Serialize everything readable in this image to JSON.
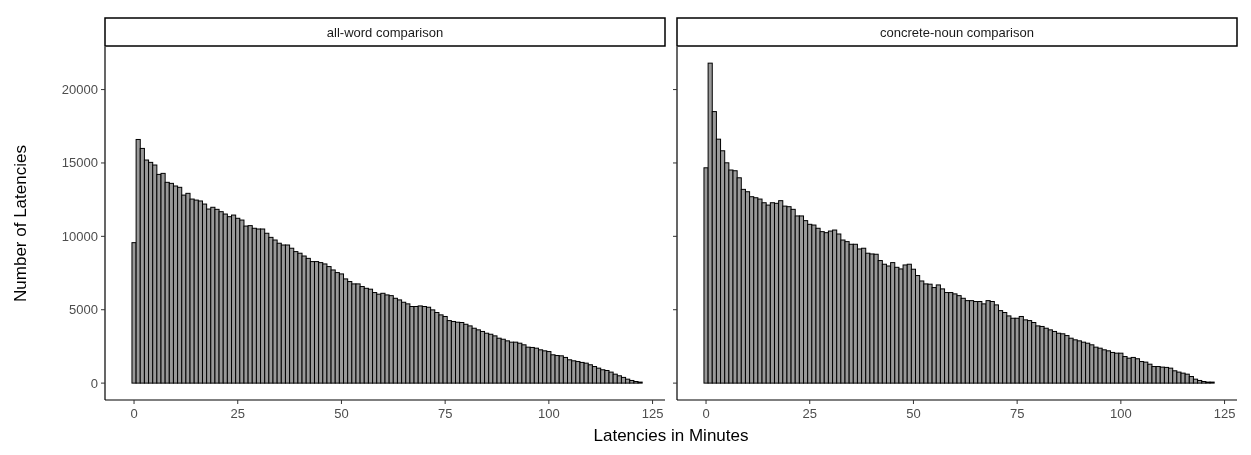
{
  "chart_data": [
    {
      "type": "histogram",
      "title": "all-word comparison",
      "xlabel": "Latencies in Minutes",
      "ylabel": "Number of Latencies",
      "color": "#999999",
      "bins": [
        -0.5,
        0.5,
        1.5,
        2.5,
        3.5,
        4.5,
        5.5,
        6.5,
        7.5,
        8.5,
        9.5,
        10.5,
        11.5,
        12.5,
        13.5,
        14.5,
        15.5,
        16.5,
        17.5,
        18.5,
        19.5,
        20.5,
        21.5,
        22.5,
        23.5,
        24.5,
        25.5,
        26.5,
        27.5,
        28.5,
        29.5,
        30.5,
        31.5,
        32.5,
        33.5,
        34.5,
        35.5,
        36.5,
        37.5,
        38.5,
        39.5,
        40.5,
        41.5,
        42.5,
        43.5,
        44.5,
        45.5,
        46.5,
        47.5,
        48.5,
        49.5,
        50.5,
        51.5,
        52.5,
        53.5,
        54.5,
        55.5,
        56.5,
        57.5,
        58.5,
        59.5,
        60.5,
        61.5,
        62.5,
        63.5,
        64.5,
        65.5,
        66.5,
        67.5,
        68.5,
        69.5,
        70.5,
        71.5,
        72.5,
        73.5,
        74.5,
        75.5,
        76.5,
        77.5,
        78.5,
        79.5,
        80.5,
        81.5,
        82.5,
        83.5,
        84.5,
        85.5,
        86.5,
        87.5,
        88.5,
        89.5,
        90.5,
        91.5,
        92.5,
        93.5,
        94.5,
        95.5,
        96.5,
        97.5,
        98.5,
        99.5,
        100.5,
        101.5,
        102.5,
        103.5,
        104.5,
        105.5,
        106.5,
        107.5,
        108.5,
        109.5,
        110.5,
        111.5,
        112.5,
        113.5,
        114.5,
        115.5,
        116.5,
        117.5,
        118.5,
        119.5,
        120.5,
        121.5,
        122.5
      ],
      "values": [
        9570,
        16600,
        15990,
        15200,
        15040,
        14860,
        14220,
        14290,
        13680,
        13610,
        13430,
        13340,
        12810,
        12930,
        12540,
        12470,
        12410,
        12200,
        11860,
        11980,
        11840,
        11680,
        11520,
        11340,
        11450,
        11230,
        11110,
        10700,
        10730,
        10550,
        10500,
        10500,
        10210,
        9930,
        9750,
        9530,
        9410,
        9410,
        9190,
        8960,
        8850,
        8660,
        8500,
        8280,
        8280,
        8210,
        8120,
        7940,
        7710,
        7530,
        7440,
        7100,
        6920,
        6760,
        6760,
        6580,
        6460,
        6400,
        6170,
        6060,
        6120,
        6010,
        5960,
        5780,
        5670,
        5510,
        5400,
        5220,
        5220,
        5260,
        5220,
        5170,
        4990,
        4810,
        4650,
        4540,
        4260,
        4200,
        4150,
        4130,
        4010,
        3900,
        3740,
        3630,
        3520,
        3400,
        3330,
        3220,
        3060,
        2990,
        2880,
        2790,
        2790,
        2720,
        2610,
        2450,
        2430,
        2380,
        2270,
        2200,
        2150,
        1930,
        1880,
        1860,
        1750,
        1590,
        1520,
        1470,
        1410,
        1360,
        1250,
        1130,
        1020,
        910,
        860,
        750,
        610,
        500,
        390,
        270,
        180,
        110,
        70
      ],
      "xlim": [
        -7,
        128
      ],
      "xticks": [
        0,
        25,
        50,
        75,
        100,
        125
      ],
      "ylim": [
        -1150,
        22900
      ],
      "yticks": [
        0,
        5000,
        10000,
        15000,
        20000
      ]
    },
    {
      "type": "histogram",
      "title": "concrete-noun comparison",
      "color": "#999999",
      "tick_labels": "x",
      "bins": [
        -0.5,
        0.5,
        1.5,
        2.5,
        3.5,
        4.5,
        5.5,
        6.5,
        7.5,
        8.5,
        9.5,
        10.5,
        11.5,
        12.5,
        13.5,
        14.5,
        15.5,
        16.5,
        17.5,
        18.5,
        19.5,
        20.5,
        21.5,
        22.5,
        23.5,
        24.5,
        25.5,
        26.5,
        27.5,
        28.5,
        29.5,
        30.5,
        31.5,
        32.5,
        33.5,
        34.5,
        35.5,
        36.5,
        37.5,
        38.5,
        39.5,
        40.5,
        41.5,
        42.5,
        43.5,
        44.5,
        45.5,
        46.5,
        47.5,
        48.5,
        49.5,
        50.5,
        51.5,
        52.5,
        53.5,
        54.5,
        55.5,
        56.5,
        57.5,
        58.5,
        59.5,
        60.5,
        61.5,
        62.5,
        63.5,
        64.5,
        65.5,
        66.5,
        67.5,
        68.5,
        69.5,
        70.5,
        71.5,
        72.5,
        73.5,
        74.5,
        75.5,
        76.5,
        77.5,
        78.5,
        79.5,
        80.5,
        81.5,
        82.5,
        83.5,
        84.5,
        85.5,
        86.5,
        87.5,
        88.5,
        89.5,
        90.5,
        91.5,
        92.5,
        93.5,
        94.5,
        95.5,
        96.5,
        97.5,
        98.5,
        99.5,
        100.5,
        101.5,
        102.5,
        103.5,
        104.5,
        105.5,
        106.5,
        107.5,
        108.5,
        109.5,
        110.5,
        111.5,
        112.5,
        113.5,
        114.5,
        115.5,
        116.5,
        117.5,
        118.5,
        119.5,
        120.5,
        121.5,
        122.5
      ],
      "values": [
        14670,
        21800,
        18500,
        16620,
        15830,
        15010,
        14520,
        14470,
        13990,
        13200,
        13040,
        12700,
        12630,
        12540,
        12290,
        12130,
        12290,
        12250,
        12430,
        12060,
        12020,
        11840,
        11390,
        11390,
        11070,
        10820,
        10770,
        10550,
        10320,
        10250,
        10360,
        10430,
        10160,
        9750,
        9640,
        9460,
        9460,
        9140,
        9190,
        8850,
        8800,
        8780,
        8350,
        8100,
        7980,
        8210,
        7890,
        7780,
        8050,
        8100,
        7760,
        7330,
        6960,
        6760,
        6740,
        6510,
        6690,
        6420,
        6170,
        6170,
        6080,
        5960,
        5780,
        5620,
        5620,
        5560,
        5560,
        5400,
        5620,
        5560,
        5330,
        4940,
        4810,
        4580,
        4420,
        4420,
        4540,
        4310,
        4260,
        4130,
        3900,
        3860,
        3740,
        3630,
        3520,
        3400,
        3360,
        3240,
        3060,
        2950,
        2880,
        2790,
        2720,
        2610,
        2450,
        2380,
        2270,
        2200,
        2090,
        2040,
        2040,
        1810,
        1700,
        1750,
        1660,
        1470,
        1430,
        1290,
        1130,
        1130,
        1090,
        1070,
        1020,
        840,
        750,
        680,
        610,
        450,
        270,
        180,
        110,
        70,
        70
      ],
      "xlim": [
        -7,
        128
      ],
      "xticks": [
        0,
        25,
        50,
        75,
        100,
        125
      ],
      "ylim": [
        -1150,
        22900
      ],
      "yticks": [
        0,
        5000,
        10000,
        15000,
        20000
      ]
    }
  ]
}
